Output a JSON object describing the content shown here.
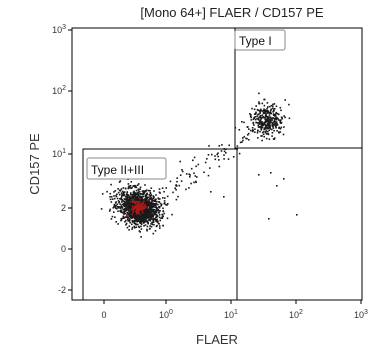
{
  "chart_data": {
    "type": "scatter",
    "title": "[Mono 64+] FLAER / CD157 PE",
    "xlabel": "FLAER",
    "ylabel": "CD157 PE",
    "x_scale": "biexponential",
    "y_scale": "biexponential",
    "x_tick_labels": [
      "0",
      "10^0",
      "10^1",
      "10^2",
      "10^3"
    ],
    "y_tick_labels": [
      "-2",
      "0",
      "2",
      "10^1",
      "10^2",
      "10^3"
    ],
    "xlim": [
      -1.5,
      1000
    ],
    "ylim": [
      -2.5,
      1000
    ],
    "gates": [
      {
        "name": "Type I",
        "x_range": [
          10,
          1000
        ],
        "y_range": [
          10,
          1000
        ]
      },
      {
        "name": "Type II+III",
        "x_range": [
          -1.5,
          10
        ],
        "y_range": [
          -2.5,
          10
        ]
      }
    ],
    "populations": [
      {
        "name": "Type I",
        "x_center": 35,
        "y_center": 35,
        "approx_events": 320,
        "color": "#1a1a1a"
      },
      {
        "name": "Type II+III",
        "x_center": 0.55,
        "y_center": 2.2,
        "approx_events": 1400,
        "color": "#1a1a1a",
        "core_color": "#b01818"
      }
    ],
    "colors": {
      "events": "#1a1a1a",
      "dense_core": "#b01818",
      "gate_lines": "#000000"
    }
  },
  "gate_labels": {
    "type1": "Type I",
    "type23": "Type II+III"
  }
}
